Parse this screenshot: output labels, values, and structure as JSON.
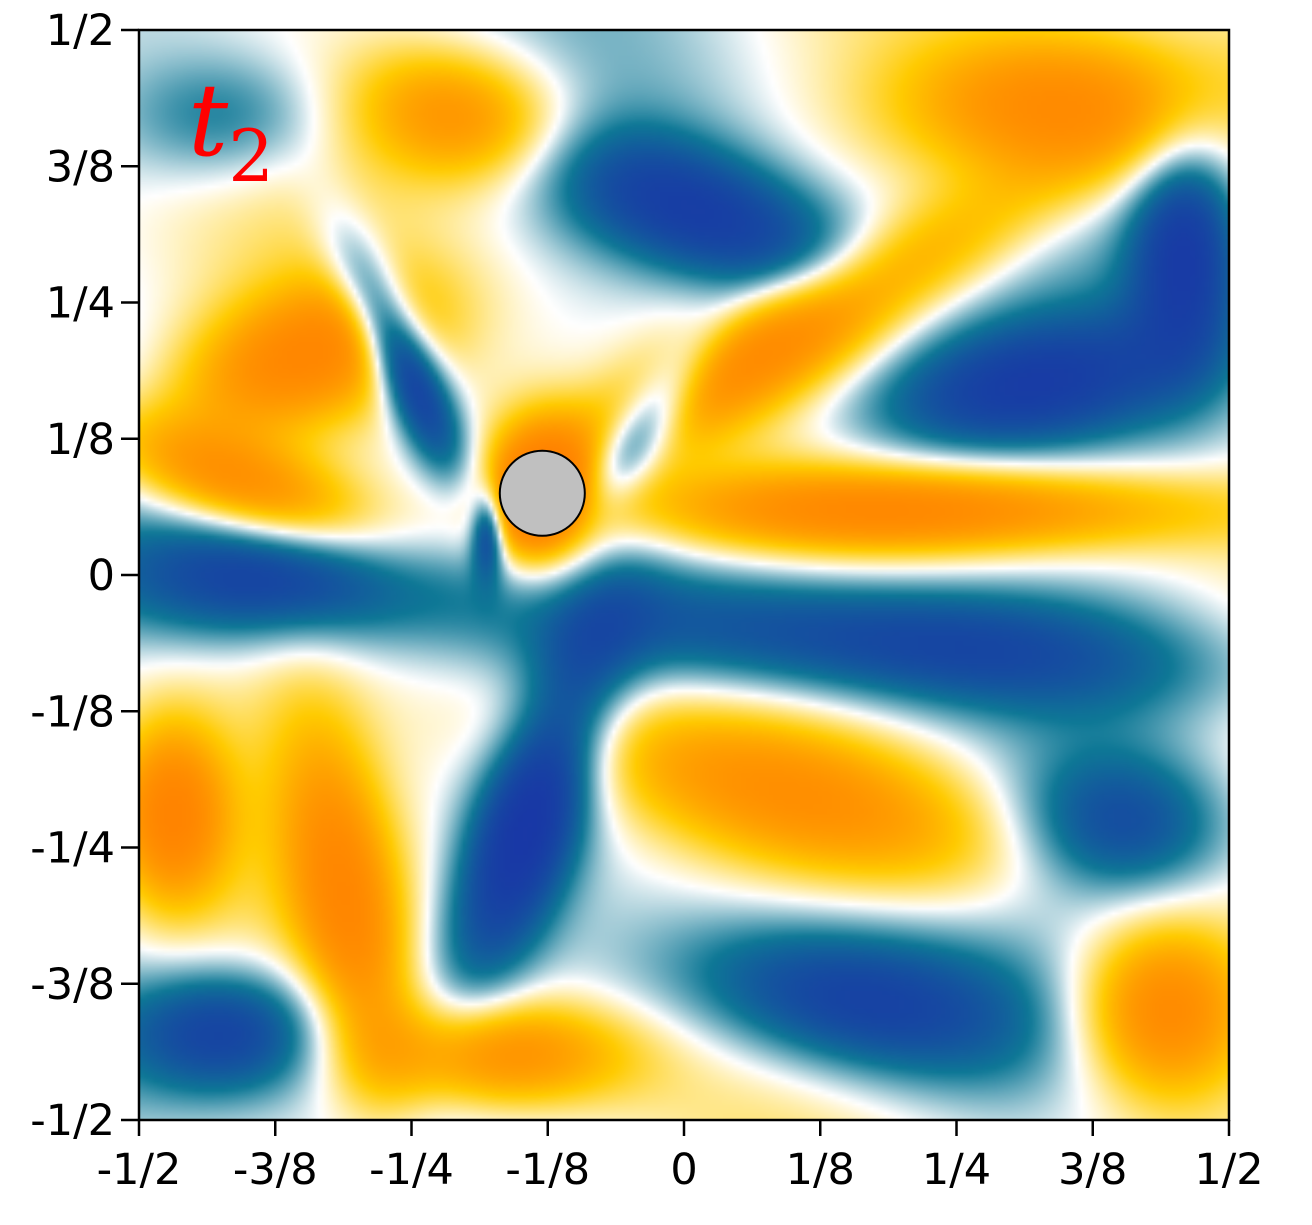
{
  "chart_data": {
    "type": "heatmap",
    "panel_label": {
      "base": "t",
      "subscript": "2"
    },
    "xlim": [
      -0.5,
      0.5
    ],
    "ylim": [
      -0.5,
      0.5
    ],
    "x_ticks": [
      {
        "value": -0.5,
        "label": "-1/2"
      },
      {
        "value": -0.375,
        "label": "-3/8"
      },
      {
        "value": -0.25,
        "label": "-1/4"
      },
      {
        "value": -0.125,
        "label": "-1/8"
      },
      {
        "value": 0,
        "label": "0"
      },
      {
        "value": 0.125,
        "label": "1/8"
      },
      {
        "value": 0.25,
        "label": "1/4"
      },
      {
        "value": 0.375,
        "label": "3/8"
      },
      {
        "value": 0.5,
        "label": "1/2"
      }
    ],
    "y_ticks": [
      {
        "value": 0.5,
        "label": "1/2"
      },
      {
        "value": 0.375,
        "label": "3/8"
      },
      {
        "value": 0.25,
        "label": "1/4"
      },
      {
        "value": 0.125,
        "label": "1/8"
      },
      {
        "value": 0,
        "label": "0"
      },
      {
        "value": -0.125,
        "label": "-1/8"
      },
      {
        "value": -0.25,
        "label": "-1/4"
      },
      {
        "value": -0.375,
        "label": "-3/8"
      },
      {
        "value": -0.5,
        "label": "-1/2"
      }
    ],
    "obstacle": {
      "x": -0.13,
      "y": 0.075,
      "r": 0.039,
      "color": "#c0c0c0"
    },
    "colormap": {
      "negative_strong": "#1a2fa8",
      "negative": "#0e7896",
      "neutral": "#ffffff",
      "positive": "#ffcb00",
      "positive_strong": "#ff7a00"
    },
    "field_blobs": [
      {
        "x": -0.35,
        "y": 0.2,
        "rx": 0.12,
        "ry": 0.06,
        "rot": 20,
        "sign": 1,
        "strength": 1.0
      },
      {
        "x": -0.42,
        "y": 0.42,
        "rx": 0.1,
        "ry": 0.06,
        "rot": 0,
        "sign": -1,
        "strength": 0.5
      },
      {
        "x": -0.2,
        "y": 0.42,
        "rx": 0.1,
        "ry": 0.06,
        "rot": -10,
        "sign": 1,
        "strength": 1.0
      },
      {
        "x": -0.26,
        "y": 0.2,
        "rx": 0.03,
        "ry": 0.11,
        "rot": 25,
        "sign": -1,
        "strength": 1.3
      },
      {
        "x": -0.4,
        "y": 0.08,
        "rx": 0.14,
        "ry": 0.045,
        "rot": -20,
        "sign": 1,
        "strength": 1.0
      },
      {
        "x": -0.38,
        "y": 0.0,
        "rx": 0.15,
        "ry": 0.06,
        "rot": 0,
        "sign": -1,
        "strength": 1.0
      },
      {
        "x": 0.02,
        "y": 0.33,
        "rx": 0.16,
        "ry": 0.06,
        "rot": -20,
        "sign": -1,
        "strength": 1.0
      },
      {
        "x": -0.04,
        "y": 0.13,
        "rx": 0.03,
        "ry": 0.1,
        "rot": -35,
        "sign": -1,
        "strength": 0.9
      },
      {
        "x": 0.1,
        "y": 0.22,
        "rx": 0.26,
        "ry": 0.05,
        "rot": 30,
        "sign": 1,
        "strength": 1.0
      },
      {
        "x": 0.34,
        "y": 0.43,
        "rx": 0.14,
        "ry": 0.07,
        "rot": 0,
        "sign": 1,
        "strength": 1.1
      },
      {
        "x": 0.3,
        "y": 0.17,
        "rx": 0.16,
        "ry": 0.06,
        "rot": 10,
        "sign": -1,
        "strength": 1.0
      },
      {
        "x": 0.46,
        "y": 0.3,
        "rx": 0.05,
        "ry": 0.1,
        "rot": 0,
        "sign": -1,
        "strength": 1.0
      },
      {
        "x": 0.22,
        "y": 0.06,
        "rx": 0.28,
        "ry": 0.04,
        "rot": 0,
        "sign": 1,
        "strength": 1.0
      },
      {
        "x": 0.2,
        "y": -0.06,
        "rx": 0.3,
        "ry": 0.06,
        "rot": -5,
        "sign": -1,
        "strength": 1.0
      },
      {
        "x": 0.1,
        "y": -0.2,
        "rx": 0.26,
        "ry": 0.07,
        "rot": -15,
        "sign": 1,
        "strength": 1.0
      },
      {
        "x": 0.4,
        "y": -0.23,
        "rx": 0.1,
        "ry": 0.07,
        "rot": 0,
        "sign": -1,
        "strength": 0.8
      },
      {
        "x": -0.14,
        "y": -0.22,
        "rx": 0.05,
        "ry": 0.17,
        "rot": -20,
        "sign": -1,
        "strength": 1.25
      },
      {
        "x": -0.31,
        "y": -0.3,
        "rx": 0.05,
        "ry": 0.16,
        "rot": 10,
        "sign": 1,
        "strength": 1.0
      },
      {
        "x": -0.47,
        "y": -0.22,
        "rx": 0.05,
        "ry": 0.08,
        "rot": 0,
        "sign": 1,
        "strength": 1.1
      },
      {
        "x": -0.42,
        "y": -0.42,
        "rx": 0.1,
        "ry": 0.06,
        "rot": 0,
        "sign": -1,
        "strength": 1.0
      },
      {
        "x": -0.17,
        "y": -0.44,
        "rx": 0.12,
        "ry": 0.05,
        "rot": 0,
        "sign": 1,
        "strength": 1.0
      },
      {
        "x": 0.15,
        "y": -0.39,
        "rx": 0.17,
        "ry": 0.07,
        "rot": -10,
        "sign": -1,
        "strength": 1.1
      },
      {
        "x": 0.44,
        "y": -0.4,
        "rx": 0.08,
        "ry": 0.08,
        "rot": 0,
        "sign": 1,
        "strength": 1.2
      },
      {
        "x": -0.13,
        "y": 0.07,
        "rx": 0.05,
        "ry": 0.07,
        "rot": 0,
        "sign": 1,
        "strength": 1.5
      },
      {
        "x": -0.18,
        "y": 0.04,
        "rx": 0.015,
        "ry": 0.04,
        "rot": 0,
        "sign": -1,
        "strength": 1.0
      }
    ]
  }
}
